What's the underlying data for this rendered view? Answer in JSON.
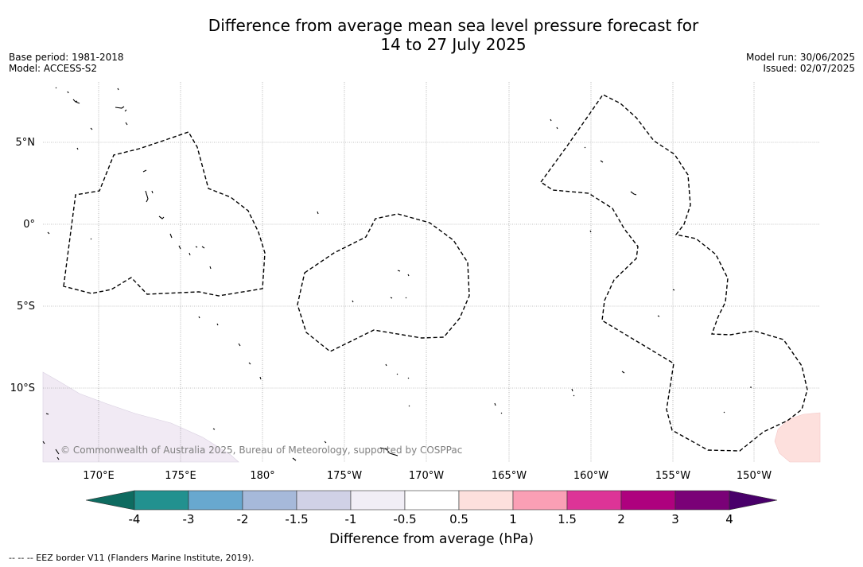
{
  "title_line1": "Difference from average mean sea level pressure forecast for",
  "title_line2": "14 to 27 July 2025",
  "meta_left": {
    "base_period": "Base period: 1981-2018",
    "model": "Model: ACCESS-S2"
  },
  "meta_right": {
    "model_run": "Model run: 30/06/2025",
    "issued": "Issued: 02/07/2025"
  },
  "map": {
    "lon_ticks": [
      "170°E",
      "175°E",
      "180°",
      "175°W",
      "170°W",
      "165°W",
      "160°W",
      "155°W",
      "150°W"
    ],
    "lat_ticks": [
      "5°N",
      "0°",
      "5°S",
      "10°S"
    ],
    "copyright": "© Commonwealth of Australia 2025, Bureau of Meteorology, supported by COSPPac",
    "gridlines": true
  },
  "colorbar": {
    "label": "Difference from average (hPa)",
    "ticks": [
      "-4",
      "-3",
      "-2",
      "-1.5",
      "-1",
      "-0.5",
      "0.5",
      "1",
      "1.5",
      "2",
      "3",
      "4"
    ],
    "colors": [
      "#0e6b60",
      "#22918f",
      "#68a8cf",
      "#a6b9da",
      "#d0d1e6",
      "#f1eef6",
      "#ffffff",
      "#fde0dd",
      "#fa9fb5",
      "#dd3497",
      "#ae017e",
      "#7a0177",
      "#49006a"
    ]
  },
  "footer": "--  --  -- EEZ border V11 (Flanders Marine Institute, 2019)."
}
